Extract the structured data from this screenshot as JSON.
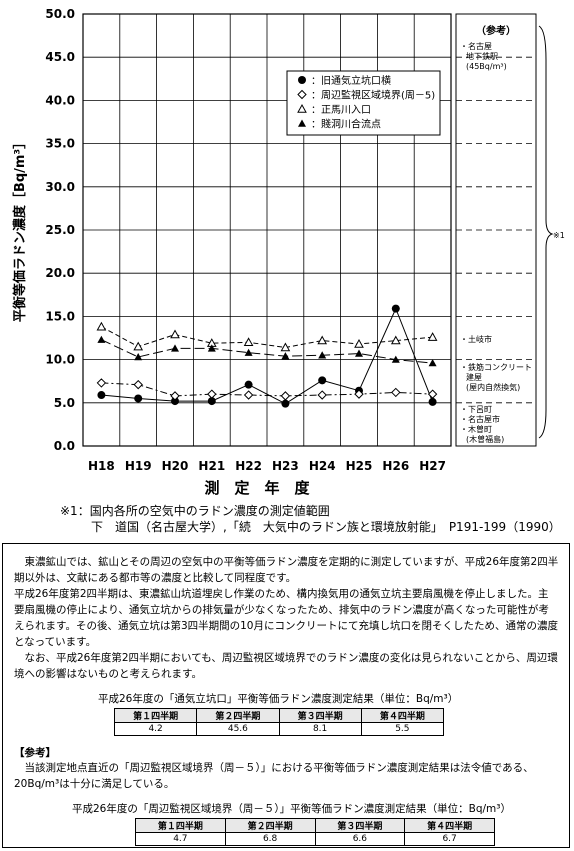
{
  "chart_data": {
    "type": "line",
    "ylabel": "平衡等価ラドン濃度［Bq/m³］",
    "xlabel": "測　定　年　度",
    "categories": [
      "H18",
      "H19",
      "H20",
      "H21",
      "H22",
      "H23",
      "H24",
      "H25",
      "H26",
      "H27"
    ],
    "ylim": [
      0,
      50
    ],
    "y_ticks": [
      "0.0",
      "5.0",
      "10.0",
      "15.0",
      "20.0",
      "25.0",
      "30.0",
      "35.0",
      "40.0",
      "45.0",
      "50.0"
    ],
    "grid": true,
    "legend_position": "top-right",
    "series": [
      {
        "name": "旧通気立坑口横",
        "marker": "filled-circle",
        "dash": "solid",
        "values": [
          5.9,
          5.5,
          5.2,
          5.2,
          7.1,
          4.9,
          7.6,
          6.4,
          15.9,
          5.1
        ]
      },
      {
        "name": "周辺監視区域境界(周－5)",
        "marker": "open-diamond",
        "dash": "dashdot",
        "values": [
          7.3,
          7.1,
          5.8,
          6.0,
          5.9,
          5.8,
          5.9,
          6.0,
          6.2,
          6.0
        ]
      },
      {
        "name": "正馬川入口",
        "marker": "open-triangle",
        "dash": "dashed",
        "values": [
          13.8,
          11.5,
          12.9,
          11.9,
          12.0,
          11.4,
          12.2,
          11.8,
          12.2,
          12.6
        ]
      },
      {
        "name": "賤洞川合流点",
        "marker": "filled-triangle",
        "dash": "longdash",
        "values": [
          12.3,
          10.3,
          11.3,
          11.3,
          10.8,
          10.4,
          10.5,
          10.7,
          10.0,
          9.6
        ]
      }
    ],
    "reference_panel": {
      "title": "（参考）",
      "entries": [
        {
          "label": "・名古屋",
          "sub": [
            "地下鉄駅",
            "(45Bq/m³)"
          ],
          "value": 45
        },
        {
          "label": "・土岐市",
          "sub": [],
          "value": 11.5
        },
        {
          "label": "・鉄筋コンクリート",
          "sub": [
            "建屋",
            "(屋内自然換気)"
          ],
          "value": 9
        },
        {
          "label": "・下呂町",
          "sub": [
            "・名古屋市",
            "・木曽町",
            "(木曽福島)"
          ],
          "value": 4.5
        }
      ],
      "range_mark": "※1"
    }
  },
  "footnote": {
    "line1": "※1：国内各所の空気中のラドン濃度の測定値範囲",
    "line2": "下　道国（名古屋大学）,「続　大気中のラドン族と環境放射能」　P191-199（1990）"
  },
  "explanation": {
    "paragraphs": [
      "東濃鉱山では、鉱山とその周辺の空気中の平衡等価ラドン濃度を定期的に測定していますが、平成26年度第2四半期以外は、文献にある都市等の濃度と比較して同程度です。",
      "平成26年度第2四半期は、東濃鉱山坑道埋戻し作業のため、構内換気用の通気立坑主要扇風機を停止しました。主要扇風機の停止により、通気立坑からの排気量が少なくなったため、排気中のラドン濃度が高くなった可能性が考えられます。その後、通気立坑は第3四半期間の10月にコンクリートにて充填し坑口を閉そくしたため、通常の濃度となっています。",
      "なお、平成26年度第2四半期においても、周辺監視区域境界でのラドン濃度の変化は見られないことから、周辺環境への影響はないものと考えられます。"
    ],
    "table1": {
      "title": "平成26年度の「通気立坑口」平衡等価ラドン濃度測定結果（単位：Bq/m³）",
      "headers": [
        "第１四半期",
        "第２四半期",
        "第３四半期",
        "第４四半期"
      ],
      "values": [
        "4.2",
        "45.6",
        "8.1",
        "5.5"
      ]
    },
    "reference_heading": "【参考】",
    "reference_text": "当該測定地点直近の「周辺監視区域境界（周－５）」における平衡等価ラドン濃度測定結果は法令値である、20Bq/m³は十分に満足している。",
    "table2": {
      "title": "平成26年度の「周辺監視区域境界（周－５）」平衡等価ラドン濃度測定結果（単位：Bq/m³）",
      "headers": [
        "第１四半期",
        "第２四半期",
        "第３四半期",
        "第４四半期"
      ],
      "values": [
        "4.7",
        "6.8",
        "6.6",
        "6.7"
      ]
    }
  }
}
